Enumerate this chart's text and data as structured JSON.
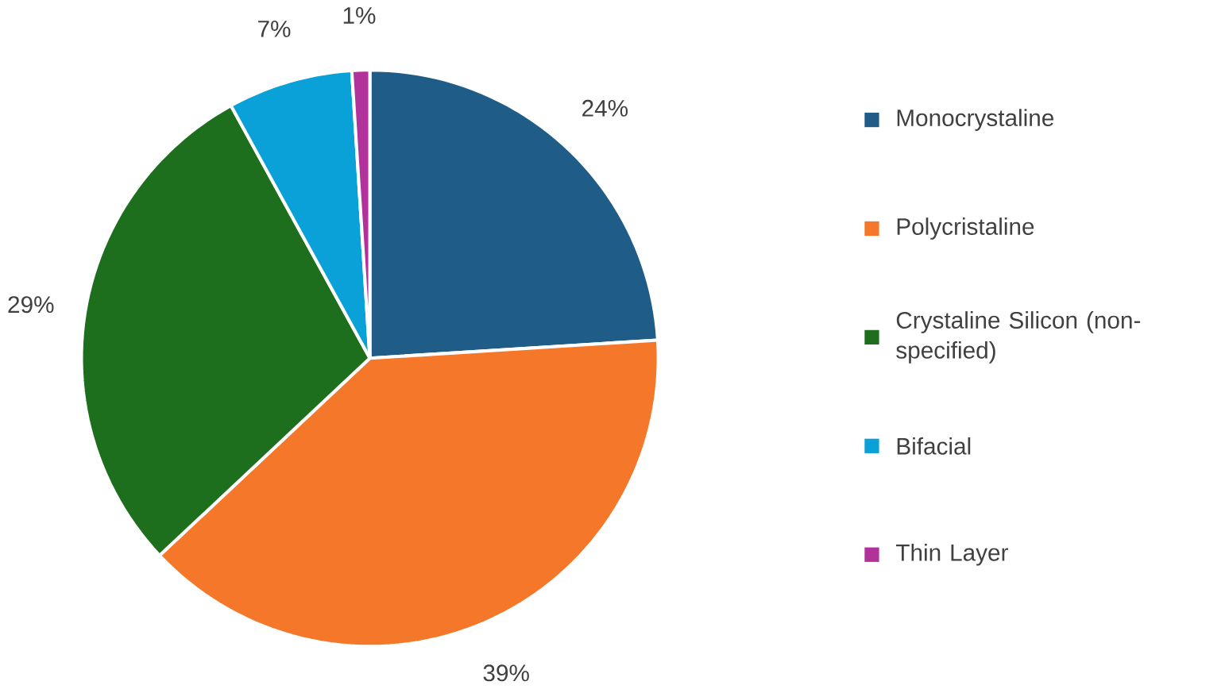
{
  "chart_data": {
    "type": "pie",
    "categories": [
      "Monocrystaline",
      "Polycristaline",
      "Crystaline Silicon (non-specified)",
      "Bifacial",
      "Thin Layer"
    ],
    "values": [
      24,
      39,
      29,
      7,
      1
    ],
    "value_labels": [
      "24%",
      "39%",
      "29%",
      "7%",
      "1%"
    ],
    "colors": [
      "#1f5c87",
      "#f4772a",
      "#1d6e1d",
      "#0aa0d8",
      "#b0329a"
    ],
    "legend": "right"
  }
}
